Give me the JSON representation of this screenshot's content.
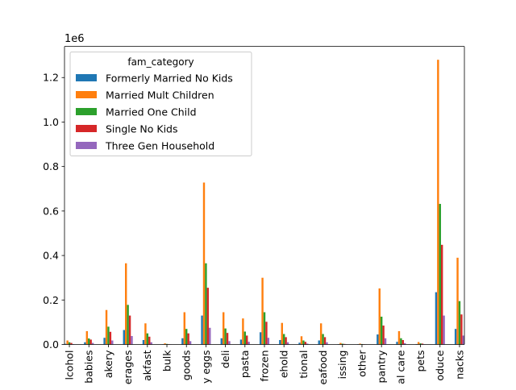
{
  "chart_data": {
    "type": "bar",
    "title": "",
    "xlabel": "",
    "ylabel": "",
    "y_offset_text": "1e6",
    "ylim": [
      0,
      1340000
    ],
    "yticks": [
      0,
      200000,
      400000,
      600000,
      800000,
      1000000,
      1200000
    ],
    "ytick_labels": [
      "0.0",
      "0.2",
      "0.4",
      "0.6",
      "0.8",
      "1.0",
      "1.2"
    ],
    "categories": [
      "alcohol",
      "babies",
      "bakery",
      "beverages",
      "breakfast",
      "bulk",
      "canned goods",
      "dairy eggs",
      "deli",
      "pasta",
      "frozen",
      "household",
      "international",
      "seafood",
      "missing",
      "other",
      "pantry",
      "personal care",
      "pets",
      "produce",
      "snacks"
    ],
    "category_labels_shown": [
      "lcohol",
      "babies",
      "akery",
      "erages",
      "akfast",
      "bulk",
      "goods",
      "y eggs",
      "deli",
      "pasta",
      "frozen",
      "ehold",
      "tional",
      "eafood",
      "issing",
      "other",
      "pantry",
      "al care",
      "pets",
      "oduce",
      "nacks"
    ],
    "legend": {
      "title": "fam_category",
      "location": "upper-left"
    },
    "grid": false,
    "series": [
      {
        "name": "Formerly Married No Kids",
        "color": "#1f77b4",
        "values": [
          3000,
          10000,
          30000,
          65000,
          20000,
          1000,
          28000,
          130000,
          28000,
          22000,
          55000,
          20000,
          8000,
          18000,
          1500,
          1200,
          45000,
          12000,
          2000,
          235000,
          70000
        ]
      },
      {
        "name": "Married Mult Children",
        "color": "#ff7f0e",
        "values": [
          18000,
          60000,
          155000,
          365000,
          95000,
          5000,
          145000,
          728000,
          145000,
          117000,
          300000,
          97000,
          37000,
          95000,
          7000,
          4000,
          252000,
          60000,
          11000,
          1280000,
          390000
        ]
      },
      {
        "name": "Married One Child",
        "color": "#2ca02c",
        "values": [
          10000,
          27000,
          80000,
          178000,
          50000,
          2500,
          70000,
          365000,
          72000,
          58000,
          145000,
          47000,
          18000,
          47000,
          3500,
          2000,
          125000,
          28000,
          5000,
          632000,
          195000
        ]
      },
      {
        "name": "Single No Kids",
        "color": "#d62728",
        "values": [
          7000,
          22000,
          57000,
          130000,
          35000,
          1500,
          50000,
          255000,
          52000,
          40000,
          102000,
          33000,
          12000,
          33000,
          2500,
          1500,
          85000,
          20000,
          4000,
          448000,
          135000
        ]
      },
      {
        "name": "Three Gen Household",
        "color": "#9467bd",
        "values": [
          2000,
          7000,
          18000,
          38000,
          10000,
          500,
          15000,
          75000,
          15000,
          12000,
          30000,
          10000,
          4000,
          10000,
          800,
          500,
          28000,
          6000,
          1000,
          130000,
          40000
        ]
      }
    ]
  }
}
